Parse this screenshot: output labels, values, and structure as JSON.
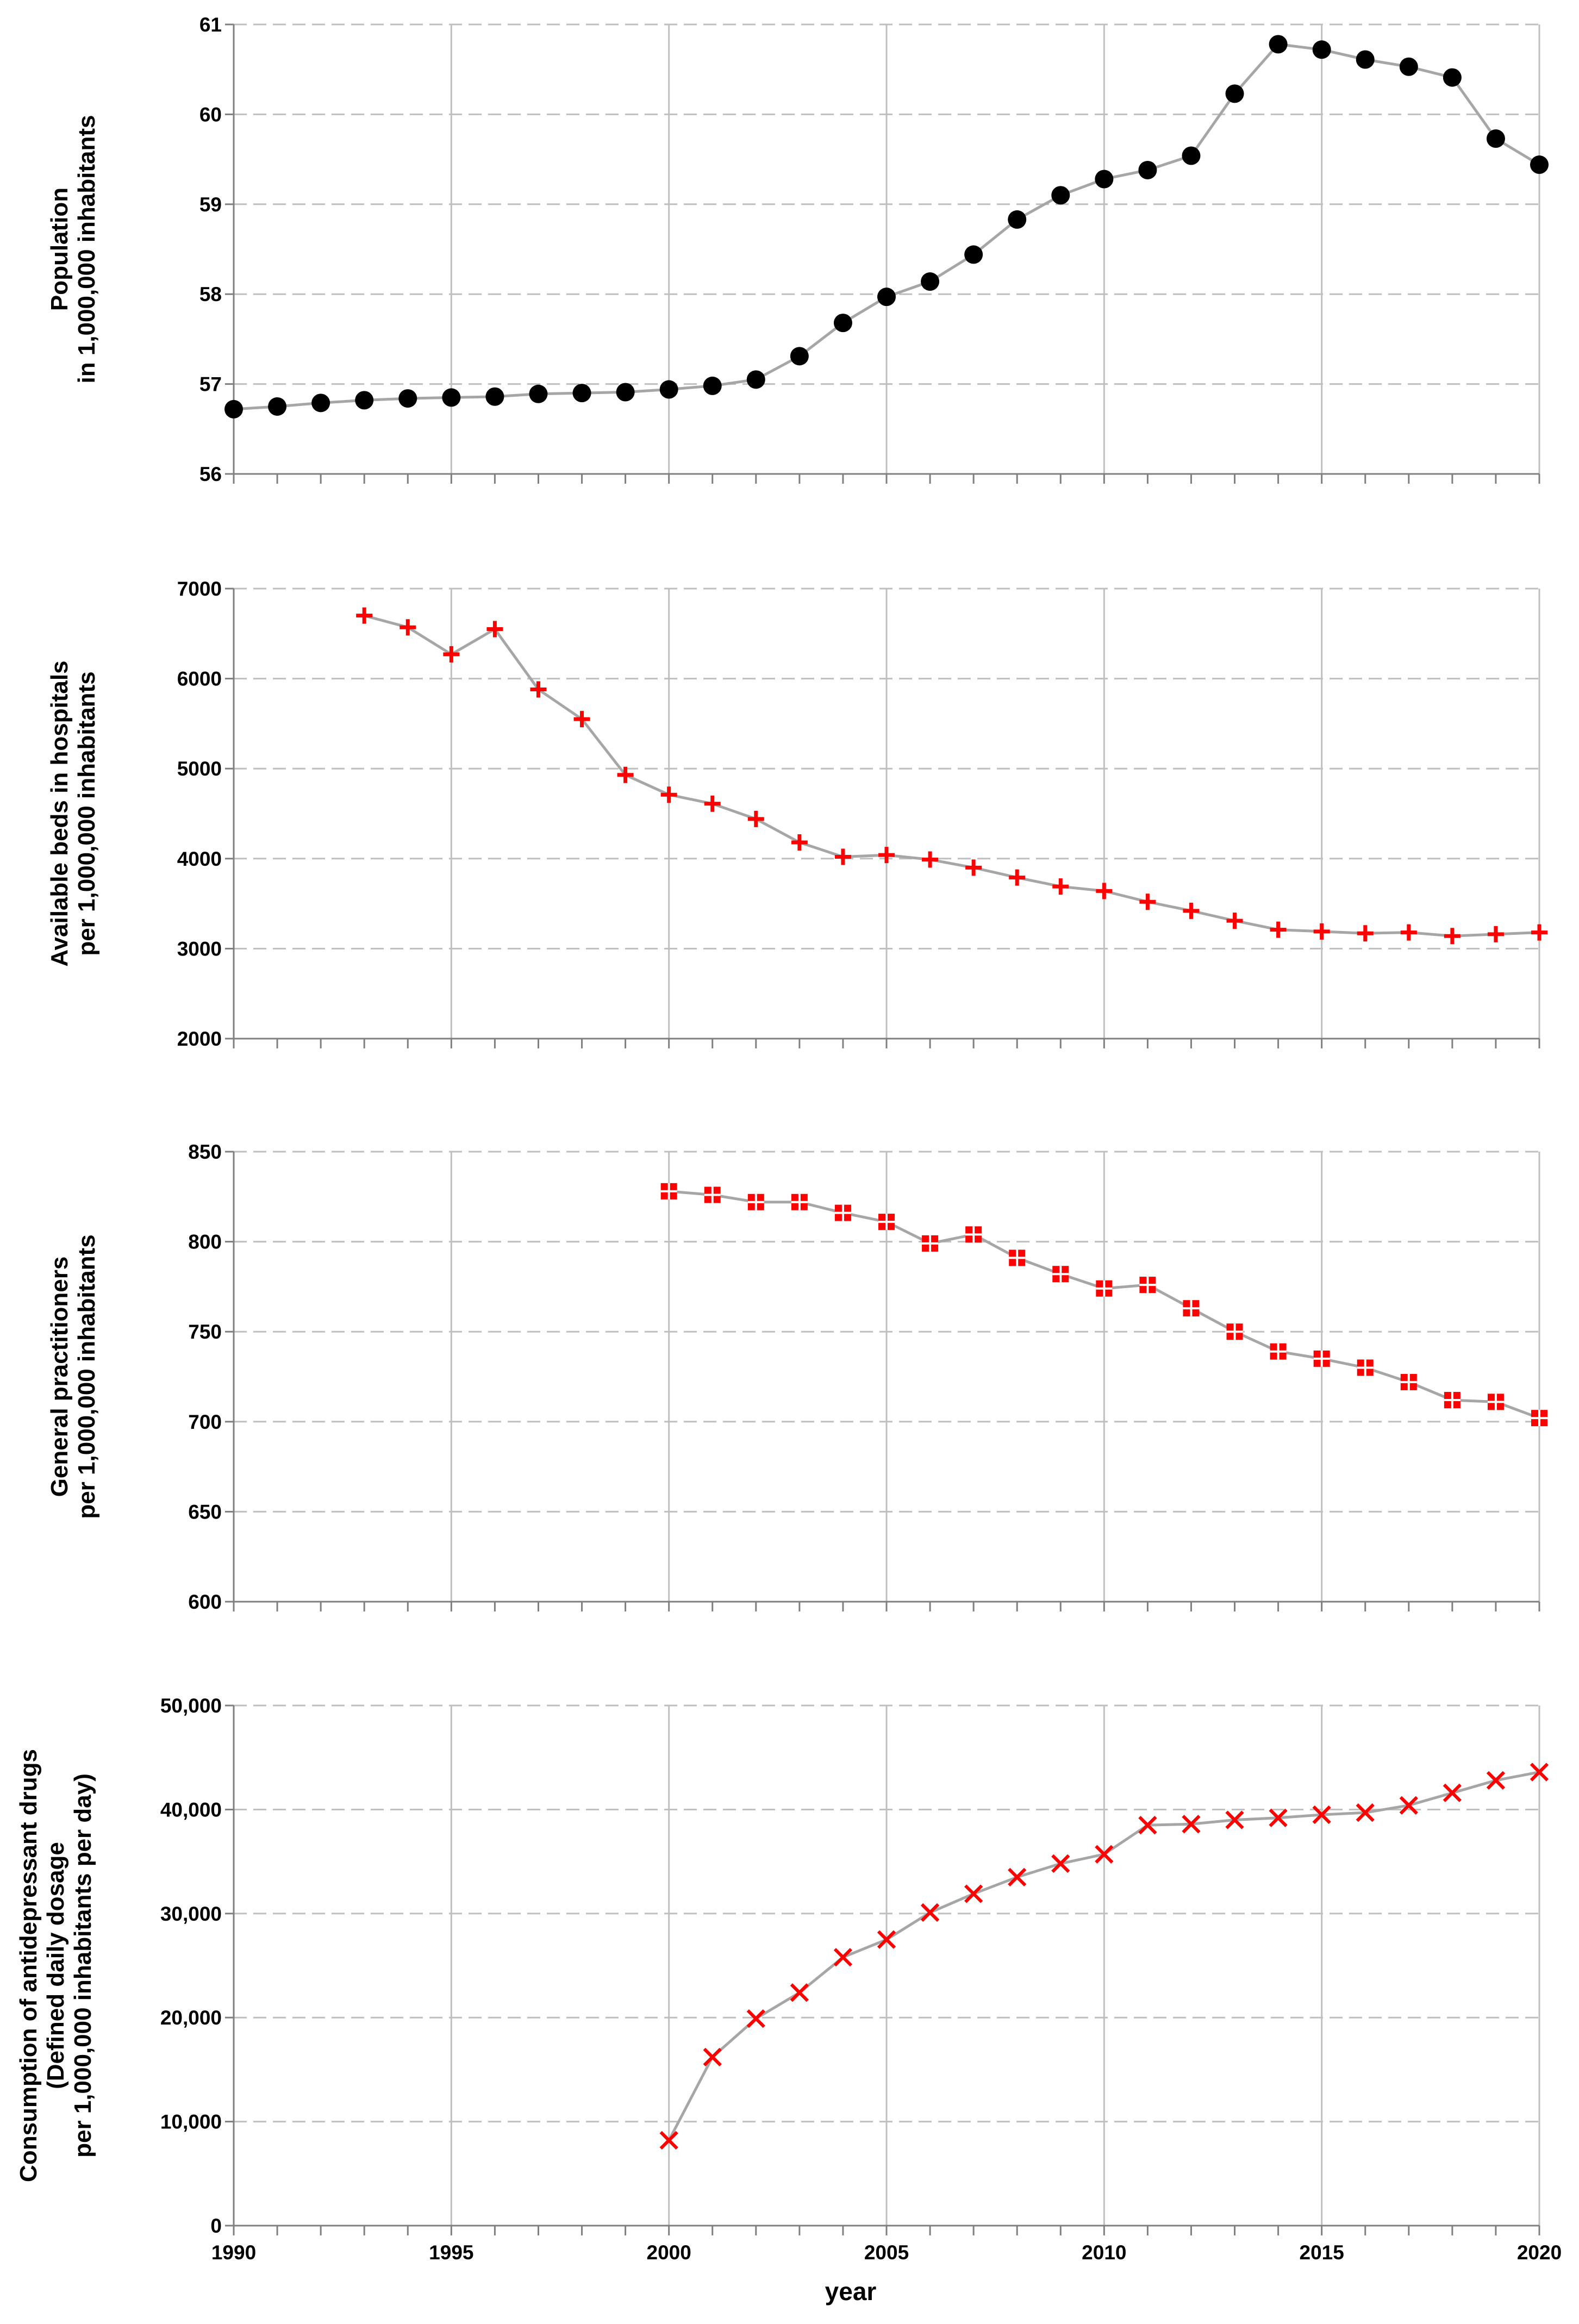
{
  "colors": {
    "population_marker": "#000000",
    "red_marker": "#ff0000",
    "line": "#a6a6a6",
    "grid": "#bfbfbf",
    "axis": "#7f7f7f"
  },
  "chart_data": [
    {
      "type": "line",
      "id": "population",
      "ylabel_lines": [
        "Population",
        "in 1,000,000 inhabitants"
      ],
      "ylim": [
        56,
        61
      ],
      "yticks": [
        56,
        57,
        58,
        59,
        60,
        61
      ],
      "ytick_labels": [
        "56",
        "57",
        "58",
        "59",
        "60",
        "61"
      ],
      "marker": "circle",
      "x": [
        1990,
        1991,
        1992,
        1993,
        1994,
        1995,
        1996,
        1997,
        1998,
        1999,
        2000,
        2001,
        2002,
        2003,
        2004,
        2005,
        2006,
        2007,
        2008,
        2009,
        2010,
        2011,
        2012,
        2013,
        2014,
        2015,
        2016,
        2017,
        2018,
        2019,
        2020
      ],
      "values": [
        56.72,
        56.75,
        56.79,
        56.82,
        56.84,
        56.85,
        56.86,
        56.89,
        56.9,
        56.91,
        56.94,
        56.98,
        57.05,
        57.31,
        57.68,
        57.97,
        58.14,
        58.44,
        58.83,
        59.1,
        59.28,
        59.38,
        59.54,
        60.23,
        60.78,
        60.72,
        60.61,
        60.53,
        60.41,
        59.73,
        59.44
      ]
    },
    {
      "type": "line",
      "id": "hospital_beds",
      "ylabel_lines": [
        "Available beds in hospitals",
        "per 1,000,000 inhabitants"
      ],
      "ylim": [
        2000,
        7000
      ],
      "yticks": [
        2000,
        3000,
        4000,
        5000,
        6000,
        7000
      ],
      "ytick_labels": [
        "2000",
        "3000",
        "4000",
        "5000",
        "6000",
        "7000"
      ],
      "marker": "plus",
      "x": [
        1993,
        1994,
        1995,
        1996,
        1997,
        1998,
        1999,
        2000,
        2001,
        2002,
        2003,
        2004,
        2005,
        2006,
        2007,
        2008,
        2009,
        2010,
        2011,
        2012,
        2013,
        2014,
        2015,
        2016,
        2017,
        2018,
        2019,
        2020
      ],
      "values": [
        6700,
        6570,
        6270,
        6550,
        5880,
        5550,
        4930,
        4710,
        4610,
        4440,
        4180,
        4020,
        4040,
        3990,
        3900,
        3790,
        3690,
        3640,
        3520,
        3420,
        3310,
        3210,
        3190,
        3170,
        3180,
        3140,
        3160,
        3180
      ]
    },
    {
      "type": "line",
      "id": "general_practitioners",
      "ylabel_lines": [
        "General practitioners",
        "per 1,000,000 inhabitants"
      ],
      "ylim": [
        600,
        850
      ],
      "yticks": [
        600,
        650,
        700,
        750,
        800,
        850
      ],
      "ytick_labels": [
        "600",
        "650",
        "700",
        "750",
        "800",
        "850"
      ],
      "marker": "square-cross",
      "x": [
        2000,
        2001,
        2002,
        2003,
        2004,
        2005,
        2006,
        2007,
        2008,
        2009,
        2010,
        2011,
        2012,
        2013,
        2014,
        2015,
        2016,
        2017,
        2018,
        2019,
        2020
      ],
      "values": [
        828,
        826,
        822,
        822,
        816,
        811,
        799,
        804,
        791,
        782,
        774,
        776,
        763,
        750,
        739,
        735,
        730,
        722,
        712,
        711,
        702
      ]
    },
    {
      "type": "line",
      "id": "antidepressants",
      "ylabel_lines": [
        "Consumption of antidepressant drugs",
        "(Defined daily dosage",
        "per 1,000,000 inhabitants per day)"
      ],
      "ylim": [
        0,
        50000
      ],
      "yticks": [
        0,
        10000,
        20000,
        30000,
        40000,
        50000
      ],
      "ytick_labels": [
        "0",
        "10,000",
        "20,000",
        "30,000",
        "40,000",
        "50,000"
      ],
      "marker": "x",
      "x": [
        2000,
        2001,
        2002,
        2003,
        2004,
        2005,
        2006,
        2007,
        2008,
        2009,
        2010,
        2011,
        2012,
        2013,
        2014,
        2015,
        2016,
        2017,
        2018,
        2019,
        2020
      ],
      "values": [
        8200,
        16200,
        19900,
        22400,
        25800,
        27500,
        30100,
        31900,
        33500,
        34800,
        35700,
        38500,
        38600,
        39000,
        39200,
        39500,
        39700,
        40400,
        41600,
        42800,
        43600
      ]
    }
  ],
  "x_axis": {
    "xlim": [
      1990,
      2020
    ],
    "tick_labels": [
      "1990",
      "1995",
      "2000",
      "2005",
      "2010",
      "2015",
      "2020"
    ],
    "xlabel": "year"
  }
}
